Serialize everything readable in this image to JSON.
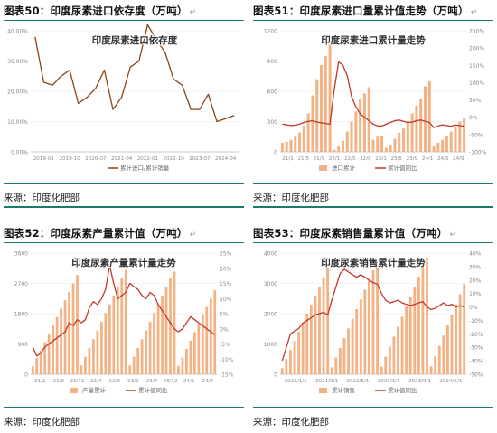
{
  "panels": [
    {
      "figure_title": "图表50：印度尿素进口依存度（万吨）",
      "source": "来源：印度化肥部",
      "return_mark": "↵",
      "chart_data": {
        "type": "line",
        "title": "印度尿素进口依存度",
        "x": [
          "2019-01",
          "2019-04",
          "2019-07",
          "2019-10",
          "2020-01",
          "2020-04",
          "2020-07",
          "2020-10",
          "2021-01",
          "2021-04",
          "2021-07",
          "2021-10",
          "2022-01",
          "2022-04",
          "2022-07",
          "2022-10",
          "2023-01",
          "2023-04",
          "2023-07",
          "2023-10",
          "2024-01",
          "2024-04",
          "2024-07",
          "2024-10"
        ],
        "tick_labels": [
          "2019-01",
          "2019-10",
          "2020-07",
          "2021-04",
          "2022-01",
          "2022-10",
          "2023-07",
          "2024-04"
        ],
        "series": [
          {
            "name": "累计进口/累计销量",
            "color": "#8B4513",
            "values": [
              0.38,
              0.23,
              0.22,
              0.25,
              0.27,
              0.16,
              0.18,
              0.21,
              0.27,
              0.14,
              0.18,
              0.28,
              0.3,
              0.42,
              0.37,
              0.33,
              0.24,
              0.22,
              0.14,
              0.14,
              0.19,
              0.1,
              0.11,
              0.12
            ]
          }
        ],
        "ylim": [
          0,
          0.4
        ],
        "y_ticks": [
          "0.00%",
          "10.00%",
          "20.00%",
          "30.00%",
          "40.00%"
        ],
        "legend": "bottom"
      }
    },
    {
      "figure_title": "图表51：印度尿素进口量累计值走势（万吨）",
      "source": "来源：印度化肥部",
      "return_mark": "↵",
      "chart_data": {
        "type": "bar",
        "title": "印度尿素进口累计量走势",
        "tick_labels": [
          "21/1",
          "21/5",
          "21/9",
          "22/1",
          "22/5",
          "22/9",
          "23/1",
          "23/5",
          "23/9",
          "24/1",
          "24/5",
          "24/9"
        ],
        "series": [
          {
            "name": "进口累计",
            "type": "bar",
            "color": "#F4B183",
            "axis": "left",
            "values": [
              90,
              100,
              120,
              150,
              190,
              260,
              380,
              560,
              720,
              860,
              950,
              1080,
              20,
              60,
              110,
              200,
              300,
              400,
              520,
              580,
              640,
              120,
              150,
              160,
              40,
              70,
              130,
              190,
              230,
              300,
              380,
              460,
              520,
              650,
              700,
              60,
              90,
              120,
              160,
              200,
              250,
              300,
              330
            ]
          },
          {
            "name": "累计值同比",
            "type": "line",
            "color": "#C0392B",
            "axis": "right",
            "values": [
              -20,
              -22,
              -24,
              -23,
              -20,
              -15,
              -12,
              -10,
              -14,
              -16,
              -18,
              -20,
              80,
              160,
              150,
              120,
              60,
              30,
              10,
              0,
              -10,
              -20,
              -25,
              -25,
              -20,
              -15,
              -10,
              -8,
              -12,
              -15,
              -14,
              -10,
              -8,
              -12,
              -15,
              -30,
              -25,
              -22,
              -24,
              -26,
              -22,
              -24,
              -26
            ]
          }
        ],
        "ylim_left": [
          0,
          1200
        ],
        "ylim_right": [
          -100,
          250
        ],
        "y_ticks_left": [
          "0",
          "300",
          "600",
          "900",
          "1200"
        ],
        "y_ticks_right": [
          "-100%",
          "-50%",
          "0%",
          "50%",
          "100%",
          "150%",
          "200%",
          "250%"
        ],
        "legend": "bottom"
      }
    },
    {
      "figure_title": "图表52：印度尿素产量累计值（万吨）",
      "source": "来源：印度化肥部",
      "return_mark": "↵",
      "chart_data": {
        "type": "bar",
        "title": "印度尿素产量累计量走势",
        "tick_labels": [
          "21/1",
          "21/6",
          "21/11",
          "22/4",
          "22/9",
          "23/2",
          "23/7",
          "23/12",
          "24/5",
          "24/9"
        ],
        "series": [
          {
            "name": "产量累计",
            "type": "bar",
            "color": "#F4B183",
            "axis": "left",
            "values": [
              240,
              480,
              700,
              950,
              1200,
              1450,
              1700,
              1950,
              2200,
              2450,
              2700,
              2950,
              260,
              520,
              780,
              1040,
              1300,
              1560,
              1820,
              2080,
              2340,
              2600,
              2850,
              3100,
              260,
              520,
              780,
              1040,
              1300,
              1560,
              1820,
              2080,
              2340,
              2600,
              2850,
              3050,
              250,
              500,
              750,
              1000,
              1250,
              1500,
              1750,
              2000,
              2250,
              2500
            ]
          },
          {
            "name": "累计值同比",
            "type": "line",
            "color": "#C0392B",
            "axis": "right",
            "values": [
              -6,
              -9,
              -8,
              -6,
              -5,
              -4,
              -3,
              -2,
              -1,
              2,
              1,
              3,
              2,
              3,
              7,
              9,
              8,
              10,
              13,
              21,
              15,
              10,
              11,
              12,
              15,
              14,
              13,
              11,
              10,
              12,
              11,
              8,
              6,
              4,
              2,
              0,
              -1,
              0,
              2,
              4,
              3,
              2,
              1,
              0,
              -1,
              -2
            ]
          }
        ],
        "ylim_left": [
          0,
          3600
        ],
        "ylim_right": [
          -15,
          25
        ],
        "y_ticks_left": [
          "0",
          "900",
          "1800",
          "2700",
          "3600"
        ],
        "y_ticks_right": [
          "-15%",
          "-10%",
          "-5%",
          "0%",
          "5%",
          "10%",
          "15%",
          "20%",
          "25%"
        ],
        "legend": "bottom"
      }
    },
    {
      "figure_title": "图表53：印度尿素销售量累计值（万吨）",
      "source": "来源：印度化肥部",
      "return_mark": "↵",
      "chart_data": {
        "type": "bar",
        "title": "印度尿素销售累计量走势",
        "tick_labels": [
          "2021/1/1",
          "2021/9/1",
          "2022/5/1",
          "2023/1/1",
          "2023/9/1",
          "2024/5/1"
        ],
        "series": [
          {
            "name": "累计销售",
            "type": "bar",
            "color": "#F4B183",
            "axis": "left",
            "values": [
              200,
              500,
              800,
              1100,
              1400,
              1700,
              2000,
              2300,
              2600,
              2900,
              3200,
              3500,
              230,
              550,
              870,
              1190,
              1510,
              1830,
              2150,
              2470,
              2790,
              3110,
              3430,
              3700,
              250,
              580,
              910,
              1240,
              1570,
              1900,
              2230,
              2560,
              2890,
              3220,
              3550,
              3850,
              260,
              600,
              940,
              1280,
              1620,
              1960,
              2300,
              2640,
              2980
            ]
          },
          {
            "name": "累计值同比",
            "type": "line",
            "color": "#C0392B",
            "axis": "right",
            "values": [
              -40,
              -30,
              -20,
              -18,
              -16,
              -12,
              -10,
              -8,
              -6,
              -5,
              -4,
              -6,
              5,
              15,
              25,
              28,
              26,
              24,
              22,
              24,
              22,
              20,
              18,
              17,
              10,
              5,
              3,
              4,
              5,
              3,
              2,
              1,
              2,
              3,
              4,
              0,
              -2,
              -1,
              1,
              3,
              1,
              2,
              0,
              1,
              0
            ]
          }
        ],
        "ylim_left": [
          0,
          4000
        ],
        "ylim_right": [
          -50,
          40
        ],
        "y_ticks_left": [
          "0",
          "1000",
          "2000",
          "3000",
          "4000"
        ],
        "y_ticks_right": [
          "-50%",
          "-40%",
          "-30%",
          "-20%",
          "-10%",
          "0%",
          "10%",
          "20%",
          "30%",
          "40%"
        ],
        "legend": "bottom"
      }
    }
  ]
}
